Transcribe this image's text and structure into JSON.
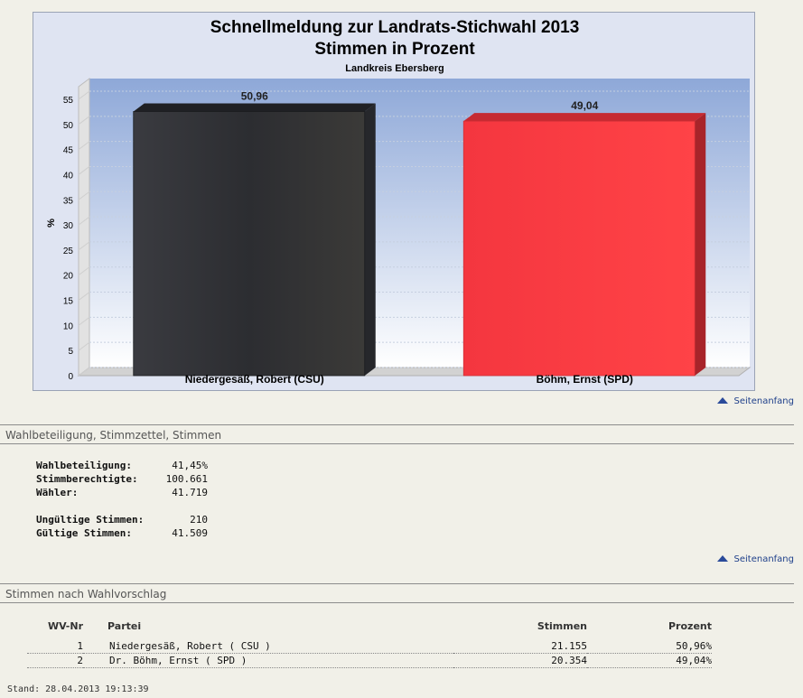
{
  "chart_data": {
    "type": "bar",
    "title": "Schnellmeldung zur Landrats-Stichwahl 2013",
    "title2": "Stimmen in Prozent",
    "subtitle": "Landkreis Ebersberg",
    "ylabel": "%",
    "xlabel": "",
    "ylim": [
      0,
      55
    ],
    "yticks": [
      0,
      5,
      10,
      15,
      20,
      25,
      30,
      35,
      40,
      45,
      50,
      55
    ],
    "categories": [
      "Niedergesäß, Robert (CSU)",
      "Böhm, Ernst (SPD)"
    ],
    "values": [
      50.96,
      49.04
    ],
    "value_labels": [
      "50,96",
      "49,04"
    ],
    "colors": [
      "#2f3035",
      "#f0343c"
    ],
    "grid": true,
    "legend": "none"
  },
  "links": {
    "top_label": "Seitenanfang"
  },
  "turnout": {
    "heading": "Wahlbeteiligung, Stimmzettel, Stimmen",
    "rows": [
      {
        "label": "Wahlbeteiligung:",
        "value": "41,45%"
      },
      {
        "label": "Stimmberechtigte:",
        "value": "100.661"
      },
      {
        "label": "Wähler:",
        "value": "41.719"
      }
    ],
    "rows2": [
      {
        "label": "Ungültige Stimmen:",
        "value": "210"
      },
      {
        "label": "Gültige Stimmen:",
        "value": "41.509"
      }
    ]
  },
  "votes": {
    "heading": "Stimmen nach Wahlvorschlag",
    "columns": [
      "WV-Nr",
      "Partei",
      "Stimmen",
      "Prozent"
    ],
    "rows": [
      {
        "nr": "1",
        "partei": "Niedergesäß, Robert ( CSU )",
        "stimmen": "21.155",
        "prozent": "50,96%"
      },
      {
        "nr": "2",
        "partei": "Dr. Böhm, Ernst ( SPD )",
        "stimmen": "20.354",
        "prozent": "49,04%"
      }
    ]
  },
  "footer": {
    "stand": "Stand: 28.04.2013 19:13:39"
  }
}
